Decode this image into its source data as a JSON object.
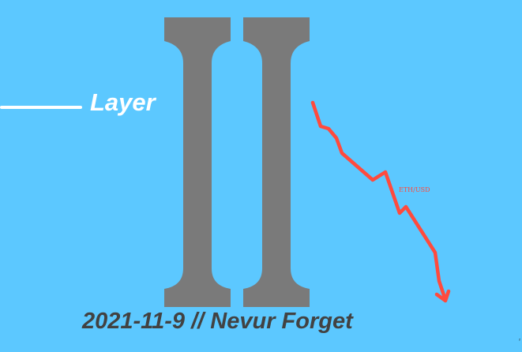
{
  "banner": {
    "layer_text": "Layer",
    "pillar_color": "#7a7a7a",
    "background_color": "#5cc8ff",
    "accent_color": "#ff4a3d"
  },
  "chart": {
    "series_label": "ETH/USD",
    "trend": "down"
  },
  "caption": {
    "text": "2021-11-9 // Nevur Forget"
  }
}
